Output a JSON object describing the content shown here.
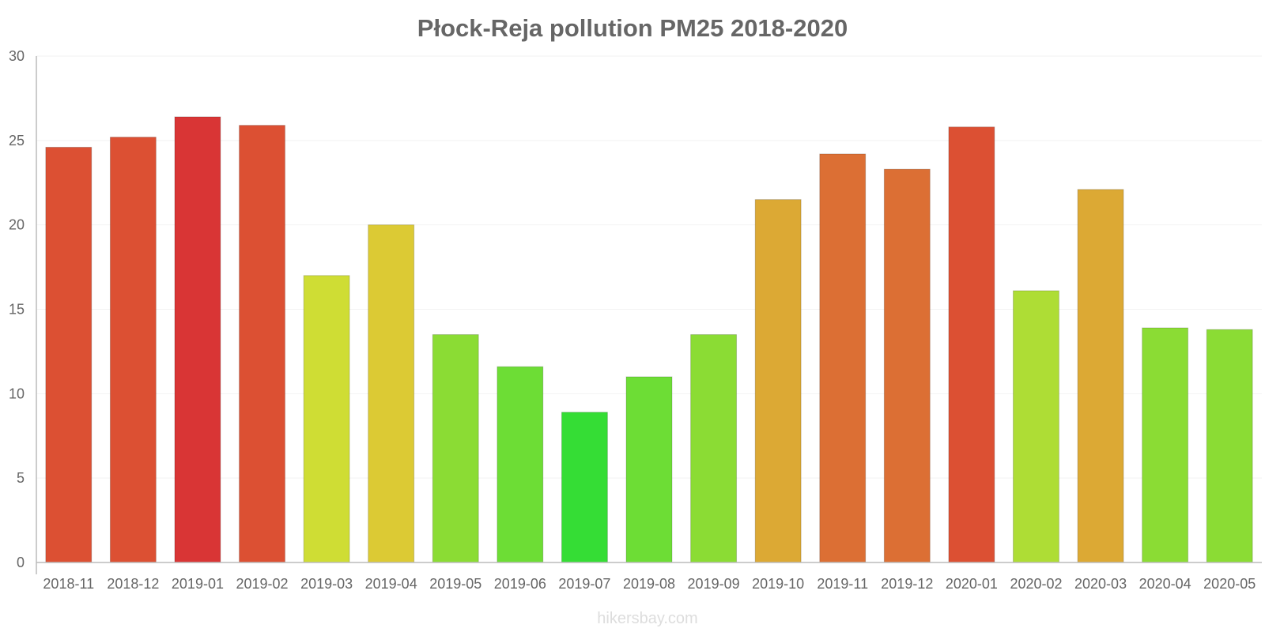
{
  "chart_data": {
    "type": "bar",
    "title": "Płock-Reja pollution PM25 2018-2020",
    "xlabel": "",
    "ylabel": "",
    "ylim": [
      0,
      30
    ],
    "yticks": [
      0,
      5,
      10,
      15,
      20,
      25,
      30
    ],
    "categories": [
      "2018-11",
      "2018-12",
      "2019-01",
      "2019-02",
      "2019-03",
      "2019-04",
      "2019-05",
      "2019-06",
      "2019-07",
      "2019-08",
      "2019-09",
      "2019-10",
      "2019-11",
      "2019-12",
      "2020-01",
      "2020-02",
      "2020-03",
      "2020-04",
      "2020-05"
    ],
    "values": [
      24.6,
      25.2,
      26.4,
      25.9,
      17.0,
      20.0,
      13.5,
      11.6,
      8.9,
      11.0,
      13.5,
      21.5,
      24.2,
      23.3,
      25.8,
      16.1,
      22.1,
      13.9,
      13.8
    ],
    "colors": [
      "#dc5033",
      "#dc5033",
      "#d93535",
      "#dc5033",
      "#cfdd34",
      "#dcca34",
      "#8bdc34",
      "#6ddd35",
      "#35dd35",
      "#6ddd35",
      "#8bdc34",
      "#dca934",
      "#dc6f34",
      "#dc6f34",
      "#dc5033",
      "#aedd35",
      "#dca934",
      "#8bdc34",
      "#8bdc34"
    ],
    "grid": true,
    "legend": "none"
  },
  "watermark": "hikersbay.com"
}
